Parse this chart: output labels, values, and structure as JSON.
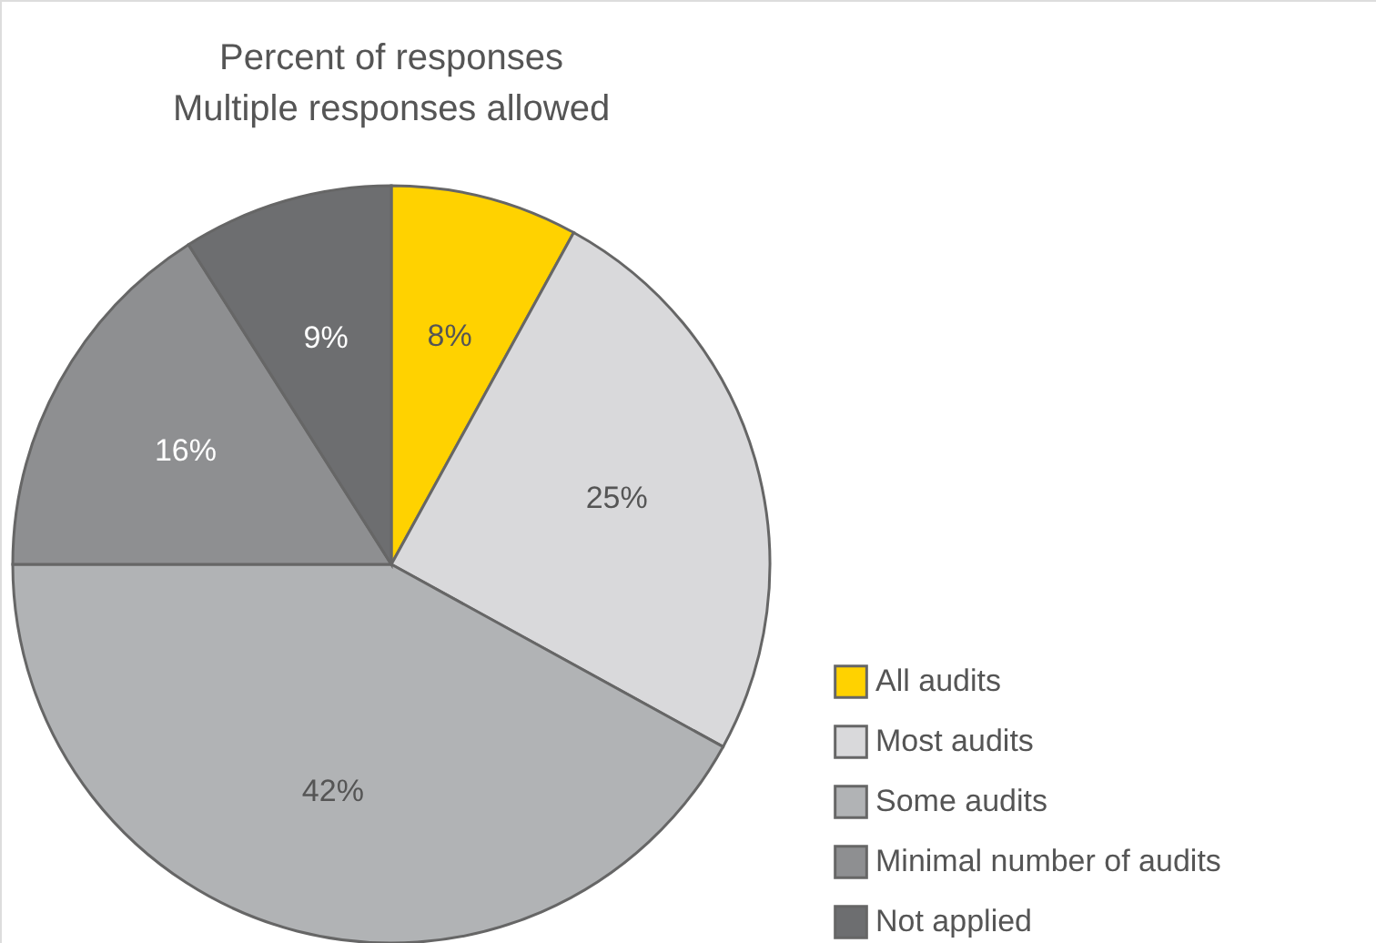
{
  "chart_data": {
    "type": "pie",
    "title": "Percent of responses",
    "subtitle": "Multiple responses allowed",
    "categories": [
      "All audits",
      "Most audits",
      "Some audits",
      "Minimal number of audits",
      "Not applied"
    ],
    "values": [
      8,
      25,
      42,
      16,
      9
    ],
    "colors": [
      "#ffd200",
      "#d9d9db",
      "#b1b3b5",
      "#8e8f91",
      "#6d6e70"
    ],
    "value_labels": [
      "8%",
      "25%",
      "42%",
      "16%",
      "9%"
    ],
    "legend": "bottom right"
  }
}
